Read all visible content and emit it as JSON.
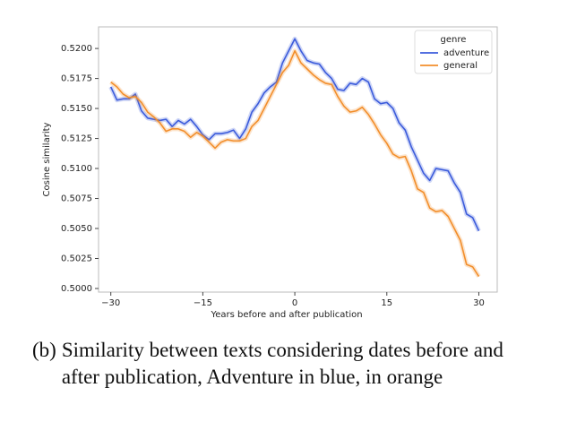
{
  "chart_data": {
    "type": "line",
    "x_label": "Years before and after publication",
    "y_label": "Cosine similarity",
    "x": [
      -30,
      -29,
      -28,
      -27,
      -26,
      -25,
      -24,
      -23,
      -22,
      -21,
      -20,
      -19,
      -18,
      -17,
      -16,
      -15,
      -14,
      -13,
      -12,
      -11,
      -10,
      -9,
      -8,
      -7,
      -6,
      -5,
      -4,
      -3,
      -2,
      -1,
      0,
      1,
      2,
      3,
      4,
      5,
      6,
      7,
      8,
      9,
      10,
      11,
      12,
      13,
      14,
      15,
      16,
      17,
      18,
      19,
      20,
      21,
      22,
      23,
      24,
      25,
      26,
      27,
      28,
      29,
      30
    ],
    "series": [
      {
        "name": "adventure",
        "color": "#3b5bdb",
        "values": [
          0.5168,
          0.5157,
          0.5158,
          0.5158,
          0.5162,
          0.5148,
          0.5142,
          0.5141,
          0.514,
          0.5141,
          0.5135,
          0.514,
          0.5137,
          0.5141,
          0.5135,
          0.5128,
          0.5124,
          0.5129,
          0.5129,
          0.513,
          0.5132,
          0.5125,
          0.5133,
          0.5147,
          0.5154,
          0.5163,
          0.5168,
          0.5172,
          0.5188,
          0.5198,
          0.5208,
          0.5198,
          0.519,
          0.5188,
          0.5187,
          0.518,
          0.5175,
          0.5166,
          0.5165,
          0.5171,
          0.517,
          0.5175,
          0.5172,
          0.5158,
          0.5154,
          0.5155,
          0.515,
          0.5138,
          0.5132,
          0.5118,
          0.5107,
          0.5096,
          0.509,
          0.51,
          0.5099,
          0.5098,
          0.5088,
          0.508,
          0.5062,
          0.5059,
          0.5048
        ]
      },
      {
        "name": "general",
        "color": "#f28e2b",
        "values": [
          0.5172,
          0.5168,
          0.5162,
          0.5159,
          0.516,
          0.5155,
          0.5147,
          0.5143,
          0.5138,
          0.5131,
          0.5133,
          0.5133,
          0.5131,
          0.5126,
          0.513,
          0.5127,
          0.5122,
          0.5117,
          0.5122,
          0.5124,
          0.5123,
          0.5123,
          0.5125,
          0.5135,
          0.514,
          0.515,
          0.516,
          0.517,
          0.518,
          0.5186,
          0.5198,
          0.5188,
          0.5183,
          0.5178,
          0.5174,
          0.5171,
          0.517,
          0.516,
          0.5152,
          0.5147,
          0.5148,
          0.5151,
          0.5145,
          0.5137,
          0.5128,
          0.5121,
          0.5112,
          0.5109,
          0.511,
          0.5098,
          0.5083,
          0.508,
          0.5067,
          0.5064,
          0.5065,
          0.506,
          0.505,
          0.504,
          0.502,
          0.5018,
          0.501
        ]
      }
    ],
    "legend_title": "genre",
    "legend": "upper right",
    "xlim": [
      -32,
      33
    ],
    "ylim": [
      0.4997,
      0.5218
    ],
    "xticks": [
      {
        "value": -30,
        "label": "−30"
      },
      {
        "value": -15,
        "label": "−15"
      },
      0,
      15,
      30
    ],
    "yticks": [
      {
        "value": 0.5,
        "label": "0.5000"
      },
      {
        "value": 0.5025,
        "label": "0.5025"
      },
      {
        "value": 0.505,
        "label": "0.5050"
      },
      {
        "value": 0.5075,
        "label": "0.5075"
      },
      {
        "value": 0.51,
        "label": "0.5100"
      },
      {
        "value": 0.5125,
        "label": "0.5125"
      },
      {
        "value": 0.515,
        "label": "0.5150"
      },
      {
        "value": 0.5175,
        "label": "0.5175"
      },
      {
        "value": 0.52,
        "label": "0.5200"
      }
    ]
  },
  "caption": {
    "label": "(b)",
    "text": "Similarity between texts considering dates before and after publication, Adventure in blue, in orange"
  }
}
